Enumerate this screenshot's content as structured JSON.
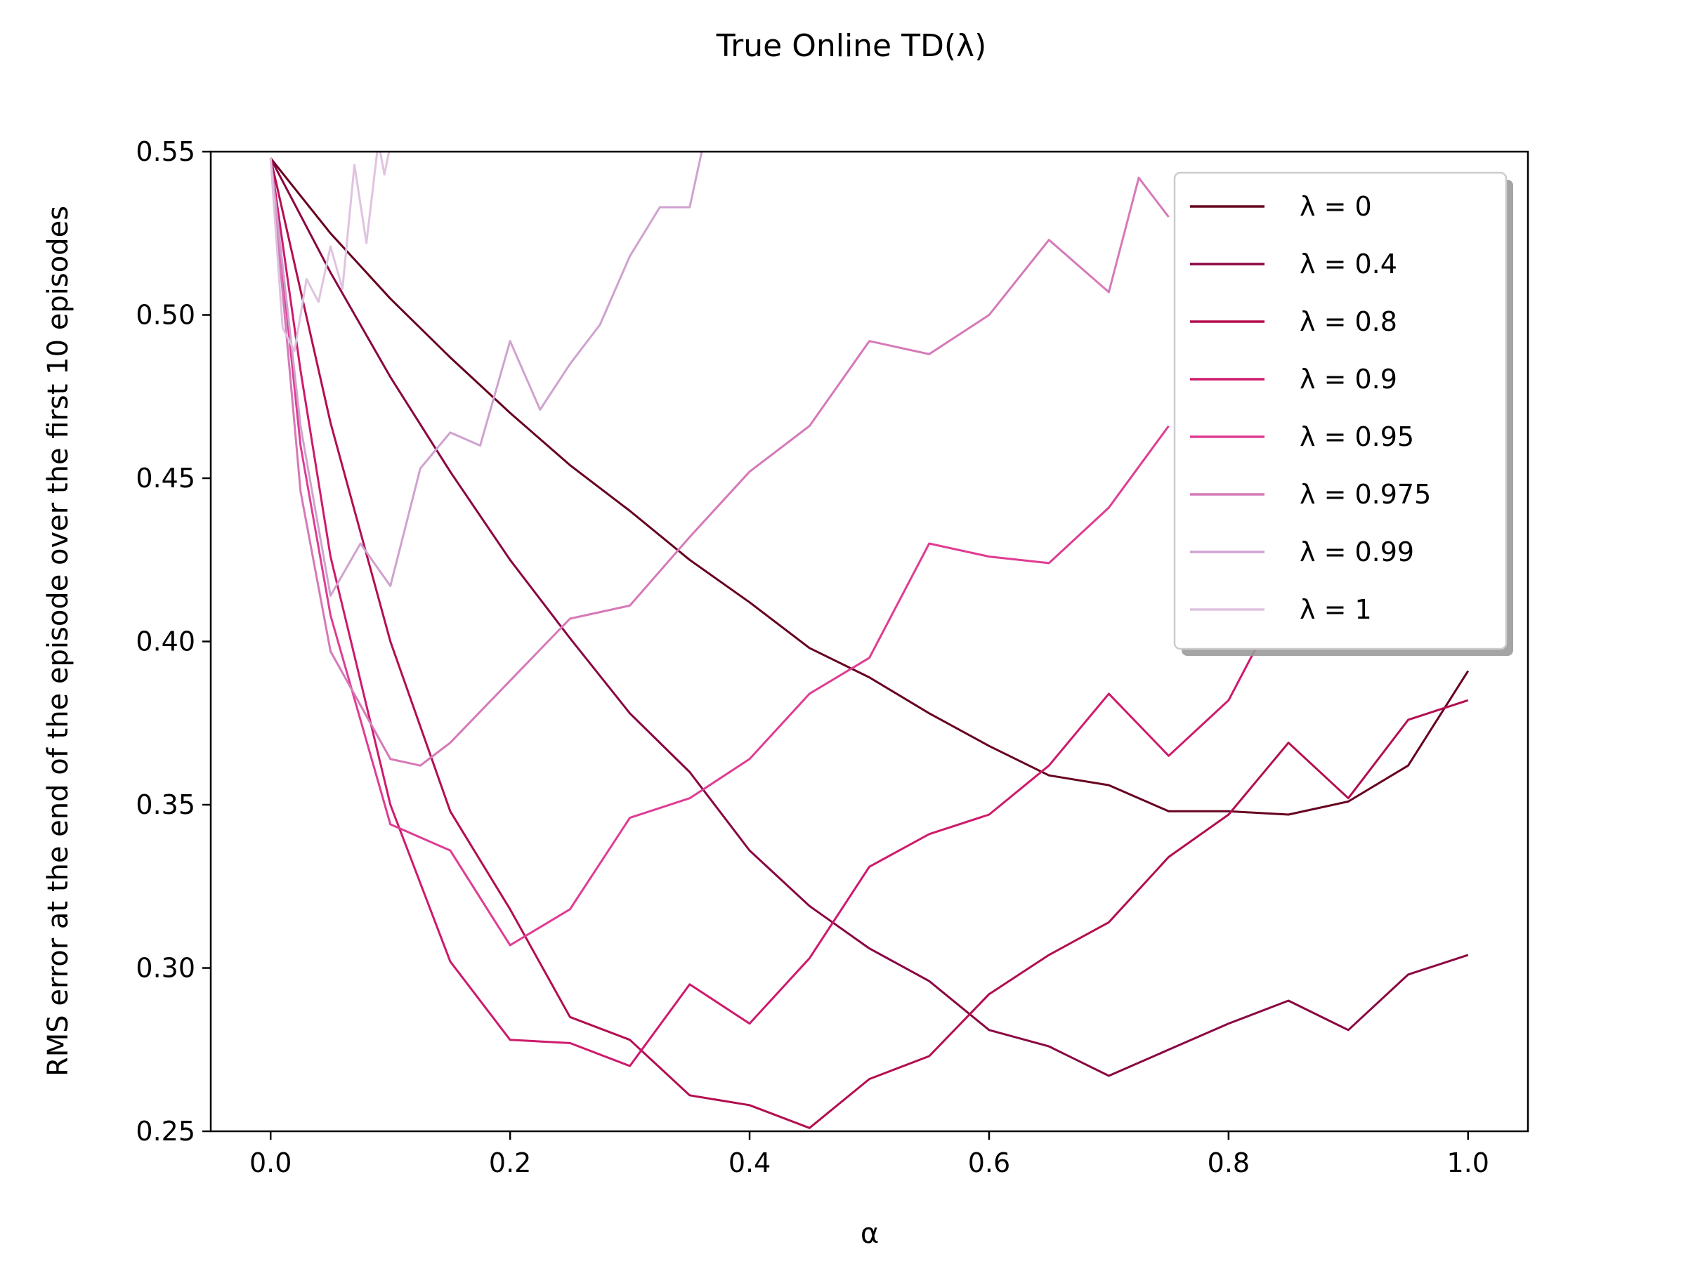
{
  "chart_data": {
    "type": "line",
    "title": "True Online TD(λ)",
    "xlabel": "α",
    "ylabel": "RMS error at the end of the episode over the first 10 episodes",
    "xlim": [
      -0.05,
      1.05
    ],
    "ylim": [
      0.25,
      0.55
    ],
    "xticks": [
      {
        "value": 0.0,
        "label": "0.0"
      },
      {
        "value": 0.2,
        "label": "0.2"
      },
      {
        "value": 0.4,
        "label": "0.4"
      },
      {
        "value": 0.6,
        "label": "0.6"
      },
      {
        "value": 0.8,
        "label": "0.8"
      },
      {
        "value": 1.0,
        "label": "1.0"
      }
    ],
    "yticks": [
      {
        "value": 0.25,
        "label": "0.25"
      },
      {
        "value": 0.3,
        "label": "0.30"
      },
      {
        "value": 0.35,
        "label": "0.35"
      },
      {
        "value": 0.4,
        "label": "0.40"
      },
      {
        "value": 0.45,
        "label": "0.45"
      },
      {
        "value": 0.5,
        "label": "0.50"
      },
      {
        "value": 0.55,
        "label": "0.55"
      }
    ],
    "grid": false,
    "legend_position": "top-right",
    "series": [
      {
        "name": "λ = 0",
        "color": "#67001f",
        "x": [
          0.0,
          0.05,
          0.1,
          0.15,
          0.2,
          0.25,
          0.3,
          0.35,
          0.4,
          0.45,
          0.5,
          0.55,
          0.6,
          0.65,
          0.7,
          0.75,
          0.8,
          0.85,
          0.9,
          0.95,
          1.0
        ],
        "y": [
          0.548,
          0.525,
          0.505,
          0.487,
          0.47,
          0.454,
          0.44,
          0.425,
          0.412,
          0.398,
          0.389,
          0.378,
          0.368,
          0.359,
          0.356,
          0.348,
          0.348,
          0.347,
          0.351,
          0.362,
          0.391
        ]
      },
      {
        "name": "λ = 0.4",
        "color": "#8a0641",
        "x": [
          0.0,
          0.05,
          0.1,
          0.15,
          0.2,
          0.25,
          0.3,
          0.35,
          0.4,
          0.45,
          0.5,
          0.55,
          0.6,
          0.65,
          0.7,
          0.75,
          0.8,
          0.85,
          0.9,
          0.95,
          1.0
        ],
        "y": [
          0.548,
          0.513,
          0.481,
          0.452,
          0.425,
          0.401,
          0.378,
          0.36,
          0.336,
          0.319,
          0.306,
          0.296,
          0.281,
          0.276,
          0.267,
          0.275,
          0.283,
          0.29,
          0.281,
          0.298,
          0.304
        ]
      },
      {
        "name": "λ = 0.8",
        "color": "#b30e4f",
        "x": [
          0.0,
          0.05,
          0.1,
          0.15,
          0.2,
          0.25,
          0.3,
          0.35,
          0.4,
          0.45,
          0.5,
          0.55,
          0.6,
          0.65,
          0.7,
          0.75,
          0.8,
          0.85,
          0.9,
          0.95,
          1.0
        ],
        "y": [
          0.548,
          0.467,
          0.4,
          0.348,
          0.318,
          0.285,
          0.278,
          0.261,
          0.258,
          0.251,
          0.266,
          0.273,
          0.292,
          0.304,
          0.314,
          0.334,
          0.347,
          0.369,
          0.352,
          0.376,
          0.382
        ]
      },
      {
        "name": "λ = 0.9",
        "color": "#ce1a6c",
        "x": [
          0.0,
          0.025,
          0.05,
          0.1,
          0.15,
          0.2,
          0.25,
          0.3,
          0.35,
          0.4,
          0.45,
          0.5,
          0.55,
          0.6,
          0.65,
          0.7,
          0.75,
          0.8,
          0.85,
          0.9
        ],
        "y": [
          0.548,
          0.483,
          0.426,
          0.35,
          0.302,
          0.278,
          0.277,
          0.27,
          0.295,
          0.283,
          0.303,
          0.331,
          0.341,
          0.347,
          0.362,
          0.384,
          0.365,
          0.382,
          0.417,
          0.445
        ]
      },
      {
        "name": "λ = 0.95",
        "color": "#df3c93",
        "x": [
          0.0,
          0.025,
          0.05,
          0.1,
          0.15,
          0.2,
          0.25,
          0.3,
          0.35,
          0.4,
          0.45,
          0.5,
          0.55,
          0.6,
          0.65,
          0.7,
          0.75
        ],
        "y": [
          0.548,
          0.46,
          0.408,
          0.344,
          0.336,
          0.307,
          0.318,
          0.346,
          0.352,
          0.364,
          0.384,
          0.395,
          0.43,
          0.426,
          0.424,
          0.441,
          0.466
        ]
      },
      {
        "name": "λ = 0.975",
        "color": "#d679b8",
        "x": [
          0.0,
          0.025,
          0.05,
          0.1,
          0.125,
          0.15,
          0.2,
          0.25,
          0.3,
          0.35,
          0.4,
          0.45,
          0.5,
          0.55,
          0.6,
          0.65,
          0.7,
          0.725,
          0.75
        ],
        "y": [
          0.548,
          0.446,
          0.397,
          0.364,
          0.362,
          0.369,
          0.388,
          0.407,
          0.411,
          0.432,
          0.452,
          0.466,
          0.492,
          0.488,
          0.5,
          0.523,
          0.507,
          0.542,
          0.53
        ]
      },
      {
        "name": "λ = 0.99",
        "color": "#cfa2cf",
        "x": [
          0.0,
          0.025,
          0.05,
          0.075,
          0.1,
          0.125,
          0.15,
          0.175,
          0.2,
          0.225,
          0.25,
          0.275,
          0.3,
          0.325,
          0.35,
          0.36
        ],
        "y": [
          0.548,
          0.466,
          0.414,
          0.43,
          0.417,
          0.453,
          0.464,
          0.46,
          0.492,
          0.471,
          0.485,
          0.497,
          0.518,
          0.533,
          0.533,
          0.55
        ]
      },
      {
        "name": "λ = 1",
        "color": "#dfc3e0",
        "x": [
          0.0,
          0.01,
          0.02,
          0.03,
          0.04,
          0.05,
          0.06,
          0.07,
          0.08,
          0.09,
          0.095,
          0.1
        ],
        "y": [
          0.548,
          0.496,
          0.489,
          0.511,
          0.504,
          0.521,
          0.508,
          0.546,
          0.522,
          0.553,
          0.543,
          0.552
        ]
      }
    ]
  }
}
